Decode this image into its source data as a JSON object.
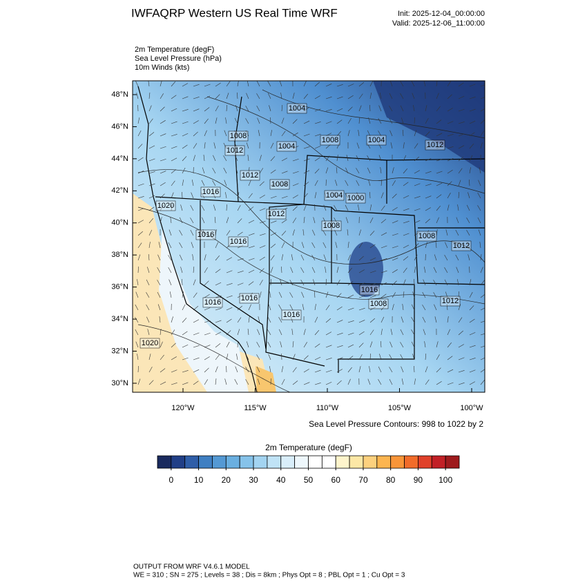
{
  "header": {
    "title": "IWFAQRP Western US Real Time WRF",
    "init": "Init: 2025-12-04_00:00:00",
    "valid": "Valid: 2025-12-06_11:00:00"
  },
  "fields": [
    "2m Temperature   (degF)",
    "Sea Level Pressure   (hPa)",
    "10m Winds   (kts)"
  ],
  "map": {
    "lat_ticks": [
      {
        "value": 48,
        "label": "48°N"
      },
      {
        "value": 46,
        "label": "46°N"
      },
      {
        "value": 44,
        "label": "44°N"
      },
      {
        "value": 42,
        "label": "42°N"
      },
      {
        "value": 40,
        "label": "40°N"
      },
      {
        "value": 38,
        "label": "38°N"
      },
      {
        "value": 36,
        "label": "36°N"
      },
      {
        "value": 34,
        "label": "34°N"
      },
      {
        "value": 32,
        "label": "32°N"
      },
      {
        "value": 30,
        "label": "30°N"
      }
    ],
    "lon_ticks": [
      {
        "value": -120,
        "label": "120°W"
      },
      {
        "value": -115,
        "label": "115°W"
      },
      {
        "value": -110,
        "label": "110°W"
      },
      {
        "value": -105,
        "label": "105°W"
      },
      {
        "value": -100,
        "label": "100°W"
      }
    ],
    "contour_labels": [
      "1004",
      "1008",
      "1008",
      "1004",
      "1012",
      "1004",
      "1012",
      "1012",
      "1008",
      "1016",
      "1004",
      "1000",
      "1020",
      "1012",
      "1016",
      "1016",
      "1008",
      "1008",
      "1012",
      "1016",
      "1008",
      "1012",
      "1016",
      "1016",
      "1016",
      "1020"
    ],
    "contour_note": "Sea Level Pressure Contours: 998 to 1022 by 2"
  },
  "colorbar": {
    "title": "2m Temperature  (degF)",
    "lim": [
      -5,
      105
    ],
    "ticks": [
      0,
      10,
      20,
      30,
      40,
      50,
      60,
      70,
      80,
      90,
      100
    ],
    "colors": [
      "#1a2a5e",
      "#213f87",
      "#2f5ea8",
      "#3f7fc2",
      "#5499d4",
      "#6aafe0",
      "#86c3ea",
      "#a3d4f1",
      "#c0e3f6",
      "#d9eefa",
      "#eef7fc",
      "#ffffff",
      "#ffffff",
      "#fff5cc",
      "#fde8a6",
      "#fdd17e",
      "#fcb550",
      "#f99538",
      "#f26c2a",
      "#e0412a",
      "#c22026",
      "#9e1a1d"
    ]
  },
  "footer": [
    "OUTPUT FROM WRF V4.6.1 MODEL",
    "WE = 310 ; SN = 275 ; Levels = 38 ; Dis = 8km ; Phys Opt = 8 ; PBL Opt = 1 ; Cu Opt = 3"
  ]
}
